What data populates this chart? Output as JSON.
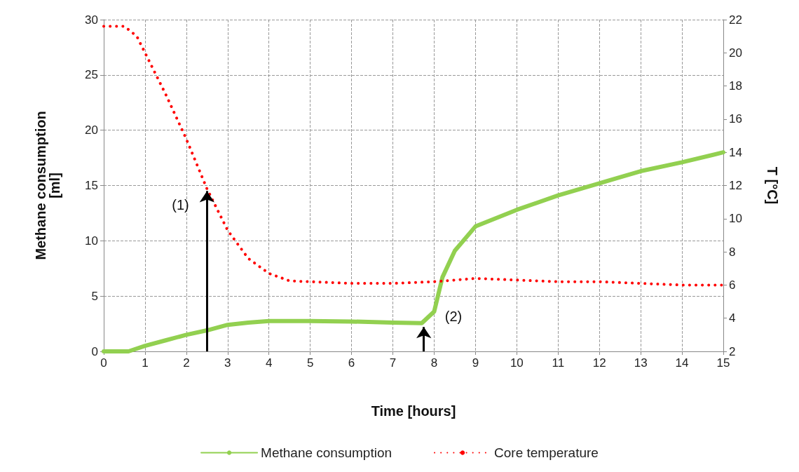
{
  "chart_data": {
    "type": "line",
    "xlabel": "Time [hours]",
    "ylabel": "Methane consumption\n[ml]",
    "y2label": "T [°C]",
    "xlim": [
      0,
      15
    ],
    "xticks": [
      0,
      1,
      2,
      3,
      4,
      5,
      6,
      7,
      8,
      9,
      10,
      11,
      12,
      13,
      14,
      15
    ],
    "ylim": [
      0,
      30
    ],
    "yticks": [
      0,
      5,
      10,
      15,
      20,
      25,
      30
    ],
    "y2lim": [
      2,
      22
    ],
    "y2ticks": [
      2,
      4,
      6,
      8,
      10,
      12,
      14,
      16,
      18,
      20,
      22
    ],
    "grid": true,
    "legend": "bottom",
    "marker": "none",
    "annotations": [
      {
        "text": "(1)",
        "x": 2.5,
        "y": 14.5
      },
      {
        "text": "(2)",
        "x": 7.75,
        "y": 2.2
      }
    ],
    "series": [
      {
        "name": "Methane consumption",
        "color": "#92d050",
        "line_style": "solid",
        "x": [
          0,
          0.6,
          1,
          1.5,
          2,
          2.5,
          3,
          3.5,
          4,
          5,
          6,
          7,
          7.7,
          8,
          8.2,
          8.5,
          9,
          10,
          11,
          12,
          13,
          14,
          15
        ],
        "values": [
          0,
          0,
          0.5,
          1,
          1.5,
          1.9,
          2.4,
          2.6,
          2.75,
          2.75,
          2.7,
          2.6,
          2.55,
          3.6,
          6.7,
          9.1,
          11.3,
          12.8,
          14.1,
          15.2,
          16.3,
          17.1,
          18
        ]
      },
      {
        "name": "Core temperature",
        "color": "#ff0000",
        "line_style": "dotted",
        "axis": "y2",
        "x": [
          0,
          0.5,
          0.8,
          1,
          1.5,
          2,
          2.5,
          3,
          3.5,
          4,
          4.5,
          5,
          6,
          7,
          8,
          9,
          10,
          11,
          12,
          13,
          14,
          15
        ],
        "values": [
          21.6,
          21.6,
          21,
          20,
          17.5,
          14.8,
          11.8,
          9.3,
          7.6,
          6.7,
          6.25,
          6.2,
          6.1,
          6.1,
          6.2,
          6.4,
          6.3,
          6.2,
          6.2,
          6.1,
          6,
          6
        ]
      }
    ]
  }
}
